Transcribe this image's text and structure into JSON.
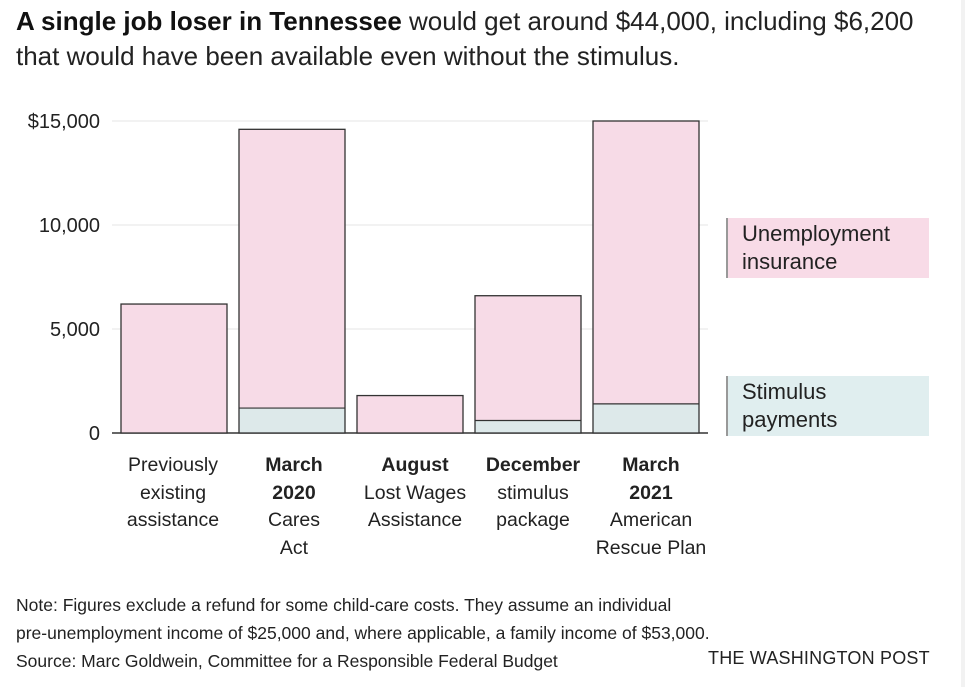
{
  "headline": {
    "bold": "A single job loser in Tennessee",
    "rest": " would get around $44,000, including $6,200 that would have been available even without the stimulus."
  },
  "colors": {
    "unemployment": "#f7dbe7",
    "stimulus": "#dde9ea",
    "legend_unemployment_bg": "#f8dbe7",
    "legend_stimulus_bg": "#e0eeef",
    "outline": "#333333",
    "grid": "#e6e6e6"
  },
  "legend": {
    "unemployment": [
      "Unemployment",
      "insurance"
    ],
    "stimulus": [
      "Stimulus",
      "payments"
    ]
  },
  "chart_data": {
    "type": "bar",
    "stacked": true,
    "categories": [
      {
        "bold": "",
        "lines": [
          "Previously",
          "existing",
          "assistance"
        ]
      },
      {
        "bold": "March",
        "lines": [
          "2020",
          "Cares",
          "Act"
        ]
      },
      {
        "bold": "August",
        "lines": [
          "Lost Wages",
          "Assistance"
        ]
      },
      {
        "bold": "December",
        "lines": [
          "stimulus",
          "package"
        ]
      },
      {
        "bold": "March",
        "lines": [
          "2021",
          "American",
          "Rescue Plan"
        ]
      }
    ],
    "series": [
      {
        "name": "Stimulus payments",
        "values": [
          0,
          1200,
          0,
          600,
          1400
        ]
      },
      {
        "name": "Unemployment insurance",
        "values": [
          6200,
          13400,
          1800,
          6000,
          13600
        ]
      }
    ],
    "ylim": [
      0,
      15000
    ],
    "yticks": [
      0,
      5000,
      10000,
      15000
    ],
    "ytick_labels": [
      "0",
      "5,000",
      "10,000",
      "$15,000"
    ],
    "grid": true,
    "legend_position": "right"
  },
  "footnote": {
    "note_1": "Note: Figures exclude a refund for some child-care costs. They assume an individual",
    "note_2": "pre-unemployment income of $25,000 and, where applicable, a family income of $53,000.",
    "source": "Source: Marc Goldwein, Committee for a Responsible Federal Budget",
    "credit": "THE WASHINGTON POST"
  }
}
